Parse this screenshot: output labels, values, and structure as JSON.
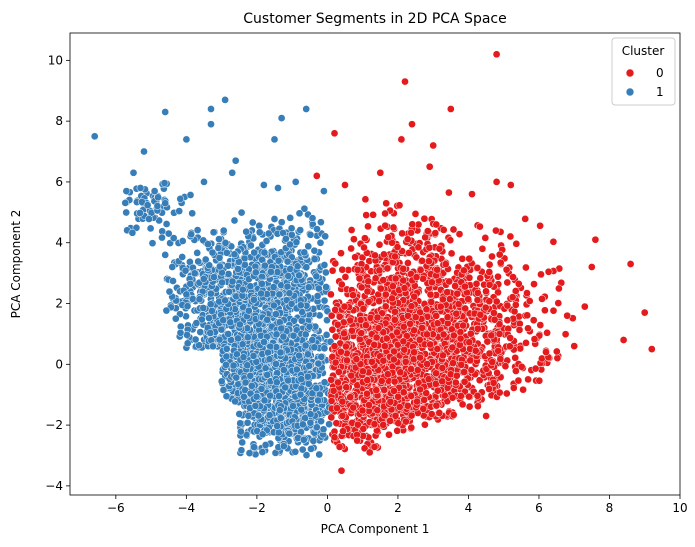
{
  "chart_data": {
    "type": "scatter",
    "title": "Customer Segments in 2D PCA Space",
    "xlabel": "PCA Component 1",
    "ylabel": "PCA Component 2",
    "xlim": [
      -7.3,
      10.0
    ],
    "ylim": [
      -4.3,
      10.9
    ],
    "xticks": [
      -6,
      -4,
      -2,
      0,
      2,
      4,
      6,
      8,
      10
    ],
    "yticks": [
      -4,
      -2,
      0,
      2,
      4,
      6,
      8,
      10
    ],
    "grid": false,
    "legend": {
      "title": "Cluster",
      "placement": "top-right"
    },
    "series": [
      {
        "name": "0",
        "color": "#e41a1c",
        "points": [
          [
            4.8,
            10.2
          ],
          [
            2.2,
            9.3
          ],
          [
            2.4,
            7.9
          ],
          [
            2.1,
            7.4
          ],
          [
            3.5,
            8.4
          ],
          [
            3.0,
            7.2
          ],
          [
            0.2,
            7.6
          ],
          [
            1.5,
            6.3
          ],
          [
            2.9,
            6.5
          ],
          [
            4.8,
            6.0
          ],
          [
            5.2,
            5.9
          ],
          [
            4.1,
            5.6
          ],
          [
            0.5,
            5.9
          ],
          [
            -0.3,
            6.2
          ],
          [
            8.6,
            3.3
          ],
          [
            9.0,
            1.7
          ],
          [
            9.2,
            0.5
          ],
          [
            8.4,
            0.8
          ],
          [
            7.6,
            4.1
          ],
          [
            7.5,
            3.2
          ],
          [
            7.3,
            1.9
          ],
          [
            6.8,
            1.6
          ],
          [
            7.0,
            0.6
          ],
          [
            6.2,
            0.4
          ],
          [
            0.4,
            -3.5
          ],
          [
            1.2,
            -2.9
          ],
          [
            4.5,
            -1.7
          ],
          [
            0.1,
            2.3
          ],
          [
            0.2,
            0.6
          ],
          [
            0.3,
            -0.6
          ],
          [
            0.2,
            -2.4
          ]
        ],
        "clouds": [
          {
            "n": 1500,
            "cx": 1.9,
            "cy": 0.2,
            "sx": 1.3,
            "sy": 1.6,
            "xmin": 0.1,
            "xmax": 5.8,
            "ymin": -2.8,
            "ymax": 4.6
          },
          {
            "n": 500,
            "cx": 4.0,
            "cy": 1.2,
            "sx": 1.2,
            "sy": 1.3,
            "xmin": 1.8,
            "xmax": 7.0,
            "ymin": -1.6,
            "ymax": 4.8
          },
          {
            "n": 250,
            "cx": 1.0,
            "cy": -1.0,
            "sx": 0.7,
            "sy": 0.9,
            "xmin": 0.1,
            "xmax": 3.0,
            "ymin": -2.9,
            "ymax": 1.5
          },
          {
            "n": 120,
            "cx": 2.0,
            "cy": 3.8,
            "sx": 1.2,
            "sy": 0.8,
            "xmin": 0.3,
            "xmax": 5.0,
            "ymin": 2.5,
            "ymax": 5.7
          }
        ]
      },
      {
        "name": "1",
        "color": "#377eb8",
        "points": [
          [
            -6.6,
            7.5
          ],
          [
            -4.6,
            8.3
          ],
          [
            -4.0,
            7.4
          ],
          [
            -3.3,
            8.4
          ],
          [
            -3.3,
            7.9
          ],
          [
            -2.9,
            8.7
          ],
          [
            -1.3,
            8.1
          ],
          [
            -0.6,
            8.4
          ],
          [
            -1.5,
            7.4
          ],
          [
            -5.2,
            7.0
          ],
          [
            -5.5,
            6.3
          ],
          [
            -2.6,
            6.7
          ],
          [
            -2.7,
            6.3
          ],
          [
            -3.5,
            6.0
          ],
          [
            -1.8,
            5.9
          ],
          [
            -0.9,
            6.0
          ],
          [
            -5.7,
            5.7
          ],
          [
            -5.3,
            5.8
          ],
          [
            -4.9,
            5.7
          ],
          [
            -4.6,
            5.3
          ],
          [
            -4.5,
            4.3
          ],
          [
            -4.4,
            3.2
          ],
          [
            -4.6,
            3.6
          ],
          [
            -4.3,
            1.5
          ],
          [
            -4.0,
            2.3
          ],
          [
            -1.4,
            5.8
          ],
          [
            -0.1,
            5.7
          ]
        ],
        "clouds": [
          {
            "n": 1300,
            "cx": -1.8,
            "cy": 0.5,
            "sx": 1.1,
            "sy": 1.6,
            "xmin": -4.2,
            "xmax": 0.0,
            "ymin": -3.0,
            "ymax": 4.6
          },
          {
            "n": 350,
            "cx": -3.0,
            "cy": 2.6,
            "sx": 0.9,
            "sy": 1.0,
            "xmin": -4.6,
            "xmax": -0.5,
            "ymin": 0.0,
            "ymax": 5.0
          },
          {
            "n": 350,
            "cx": -1.0,
            "cy": -1.2,
            "sx": 0.7,
            "sy": 1.0,
            "xmin": -2.8,
            "xmax": 0.1,
            "ymin": -3.0,
            "ymax": 1.5
          },
          {
            "n": 140,
            "cx": -0.9,
            "cy": 3.3,
            "sx": 0.8,
            "sy": 0.9,
            "xmin": -2.8,
            "xmax": 0.0,
            "ymin": 1.5,
            "ymax": 5.2
          },
          {
            "n": 70,
            "cx": -5.0,
            "cy": 5.2,
            "sx": 0.5,
            "sy": 0.5,
            "xmin": -5.8,
            "xmax": -3.5,
            "ymin": 3.8,
            "ymax": 6.0
          }
        ]
      }
    ]
  }
}
